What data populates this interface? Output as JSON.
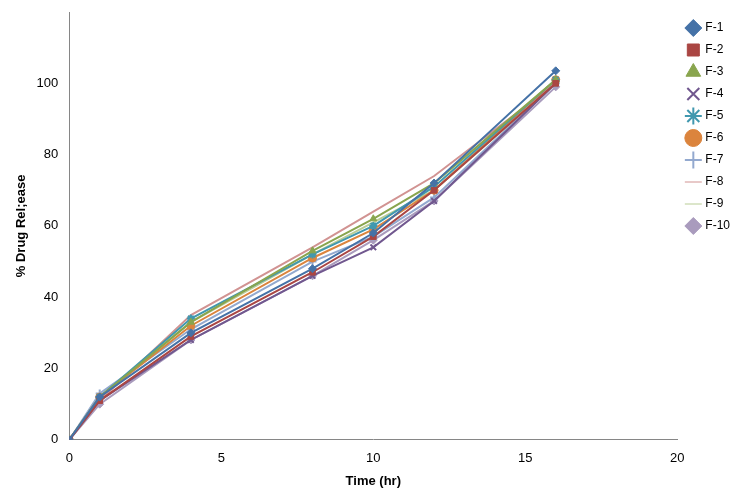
{
  "chart_data": {
    "type": "line",
    "x_label": "Time (hr)",
    "y_label": "% Drug Rel;ease",
    "x": [
      0,
      1,
      4,
      8,
      10,
      12,
      16
    ],
    "xlim": [
      0,
      20
    ],
    "xticks": [
      0,
      5,
      10,
      15,
      20
    ],
    "ylim": [
      0,
      120
    ],
    "yticks": [
      0,
      20,
      40,
      60,
      80,
      100
    ],
    "grid": false,
    "legend": "right",
    "series": [
      {
        "name": "F-1",
        "color": "#4572a7",
        "marker": "diamond",
        "values": [
          0,
          12,
          30,
          48,
          58,
          72,
          103.5
        ]
      },
      {
        "name": "F-2",
        "color": "#aa4643",
        "marker": "square",
        "values": [
          0,
          11,
          29,
          47,
          57,
          70,
          100
        ]
      },
      {
        "name": "F-3",
        "color": "#89a54e",
        "marker": "triangle",
        "values": [
          0,
          12,
          33,
          53,
          62,
          72,
          101
        ]
      },
      {
        "name": "F-4",
        "color": "#71588f",
        "marker": "x",
        "values": [
          0,
          11,
          28,
          46,
          54,
          67,
          100
        ]
      },
      {
        "name": "F-5",
        "color": "#4198af",
        "marker": "star",
        "values": [
          0,
          12,
          34,
          52,
          60,
          71,
          101
        ]
      },
      {
        "name": "F-6",
        "color": "#db843d",
        "marker": "circle",
        "values": [
          0,
          12,
          32,
          51,
          59,
          70,
          101
        ]
      },
      {
        "name": "F-7",
        "color": "#93a9cf",
        "marker": "plus",
        "values": [
          0,
          13,
          31,
          50,
          57,
          68,
          100
        ]
      },
      {
        "name": "F-8",
        "color": "#d19392",
        "marker": "none",
        "values": [
          0,
          11,
          35,
          54,
          64,
          74,
          100
        ]
      },
      {
        "name": "F-9",
        "color": "#b9cd96",
        "marker": "none",
        "values": [
          0,
          12,
          33,
          52,
          61,
          70,
          100
        ]
      },
      {
        "name": "F-10",
        "color": "#a99bbd",
        "marker": "diamond",
        "values": [
          0,
          10,
          28,
          46,
          56,
          67,
          99
        ]
      }
    ]
  }
}
